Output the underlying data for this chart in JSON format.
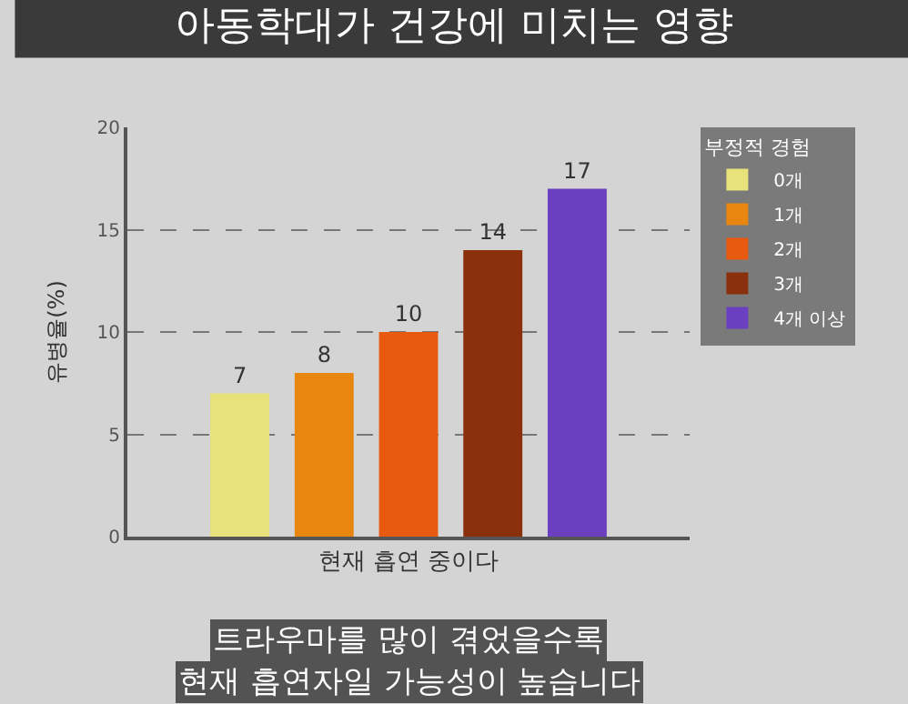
{
  "chart_data": {
    "type": "bar",
    "title": "아동학대가 건강에 미치는 영향",
    "ylabel": "유병율(%)",
    "legend_title": "부정적 경험",
    "categories": [
      "현재 흡연 중이다"
    ],
    "series": [
      {
        "name": "0개",
        "color": "#e8e27a",
        "values": [
          7
        ]
      },
      {
        "name": "1개",
        "color": "#e8860f",
        "values": [
          8
        ]
      },
      {
        "name": "2개",
        "color": "#e85a10",
        "values": [
          10
        ]
      },
      {
        "name": "3개",
        "color": "#8a300c",
        "values": [
          14
        ]
      },
      {
        "name": "4개 이상",
        "color": "#6a3fc0",
        "values": [
          17
        ]
      }
    ],
    "ylim": [
      0,
      20
    ],
    "yticks": [
      0,
      5,
      10,
      15,
      20
    ],
    "grid": "y",
    "legend": "top right",
    "data_labels": true,
    "annotations": [
      "트라우마를 많이 겪었을수록",
      "현재 흡연자일 가능성이 높습니다"
    ]
  }
}
